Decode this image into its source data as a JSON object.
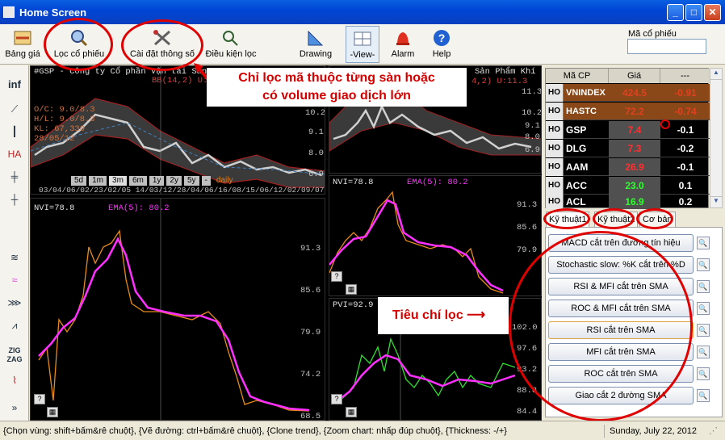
{
  "window": {
    "title": "Home Screen"
  },
  "toolbar": {
    "items": [
      {
        "label": "Bảng giá",
        "icon": "price-board-icon"
      },
      {
        "label": "Lọc cổ phiếu",
        "icon": "search-icon"
      },
      {
        "label": "Cài đặt thông số",
        "icon": "tools-icon"
      },
      {
        "label": "Điều kiện lọc",
        "icon": "filter-condition-icon"
      },
      {
        "label": "Drawing",
        "icon": "drawing-icon"
      },
      {
        "label": "-View-",
        "icon": "view-grid-icon"
      },
      {
        "label": "Alarm",
        "icon": "bell-icon"
      },
      {
        "label": "Help",
        "icon": "help-icon"
      }
    ],
    "ticker_label": "Mã cổ phiếu",
    "ticker_value": ""
  },
  "left_tools": [
    "inf"
  ],
  "chart_main": {
    "header": "#GSP - Công ty Cổ phần Vận tải Sản P",
    "indicator": "BB(14,2) U:",
    "info": [
      "O/C: 9.0/8.3",
      "H/L: 9.0/8.3",
      "KL: 67,330",
      "28/05/12"
    ],
    "price_ticks": [
      "10.2",
      "9.1",
      "8.0",
      "6.9"
    ],
    "timeframes": [
      "5d",
      "1m",
      "3m",
      "6m",
      "1y",
      "2y",
      "5y",
      "-",
      "daily"
    ],
    "dates": "03/04/06/02/23/02/05 14/03/12/28/04/06/16/08/15/06/12/02/09/07/06/07"
  },
  "chart_right_top": {
    "header": "Sản Phẩm Khí",
    "indicator": "4,2) U:11.3",
    "price_ticks": [
      "11.3",
      "10.2",
      "9.1",
      "8.0",
      "6.9"
    ]
  },
  "chart_nvi_left": {
    "label": "NVI=78.8",
    "ema": "EMA(5): 80.2",
    "ticks": [
      "91.3",
      "85.6",
      "79.9",
      "74.2",
      "68.5"
    ]
  },
  "chart_nvi_right": {
    "label": "NVI=78.8",
    "ema": "EMA(5): 80.2",
    "ticks": [
      "91.3",
      "85.6",
      "79.9"
    ]
  },
  "chart_pvi": {
    "label": "PVI=92.9",
    "ticks": [
      "102.0",
      "97.6",
      "93.2",
      "88.8",
      "84.4"
    ]
  },
  "callouts": {
    "top": [
      "Chỉ lọc mã thuộc từng sàn hoặc",
      "có volume giao dịch lớn"
    ],
    "criteria": "Tiêu chí lọc"
  },
  "quotes": {
    "headers": [
      "Mã CP",
      "Giá",
      "---"
    ],
    "rows": [
      {
        "ex": "HO",
        "code": "VNINDEX",
        "price": "424.5",
        "chg": "-0.91"
      },
      {
        "ex": "HO",
        "code": "HASTC",
        "price": "72.2",
        "chg": "-0.74"
      },
      {
        "ex": "HO",
        "code": "GSP",
        "price": "7.4",
        "chg": "-0.1"
      },
      {
        "ex": "HO",
        "code": "DLG",
        "price": "7.3",
        "chg": "-0.2"
      },
      {
        "ex": "HO",
        "code": "AAM",
        "price": "26.9",
        "chg": "-0.1"
      },
      {
        "ex": "HO",
        "code": "ACC",
        "price": "23.0",
        "chg": "0.1"
      },
      {
        "ex": "HO",
        "code": "ACL",
        "price": "16.9",
        "chg": "0.2"
      }
    ]
  },
  "tabs": [
    "Kỹ thuật1",
    "Kỹ thuật2",
    "Cơ bản"
  ],
  "filters": [
    "MACD cắt trên đường tín hiệu",
    "Stochastic slow: %K cắt trên %D",
    "RSI & MFI cắt trên SMA",
    "ROC & MFI cắt trên SMA",
    "RSI cắt trên SMA",
    "MFI cắt trên SMA",
    "ROC cắt trên SMA",
    "Giao cắt 2 đường SMA"
  ],
  "status": {
    "hint": "{Chọn vùng: shift+bấm&rê chuột}, {Vẽ đường: ctrl+bấm&rê chuột}, {Clone trend}, {Zoom chart: nhấp đúp chuột}, {Thickness: -/+}",
    "date": "Sunday, July 22, 2012"
  },
  "colors": {
    "orange": "#e88a1a",
    "magenta": "#ff30ff",
    "green": "#30e030",
    "annotation": "#e00000"
  }
}
